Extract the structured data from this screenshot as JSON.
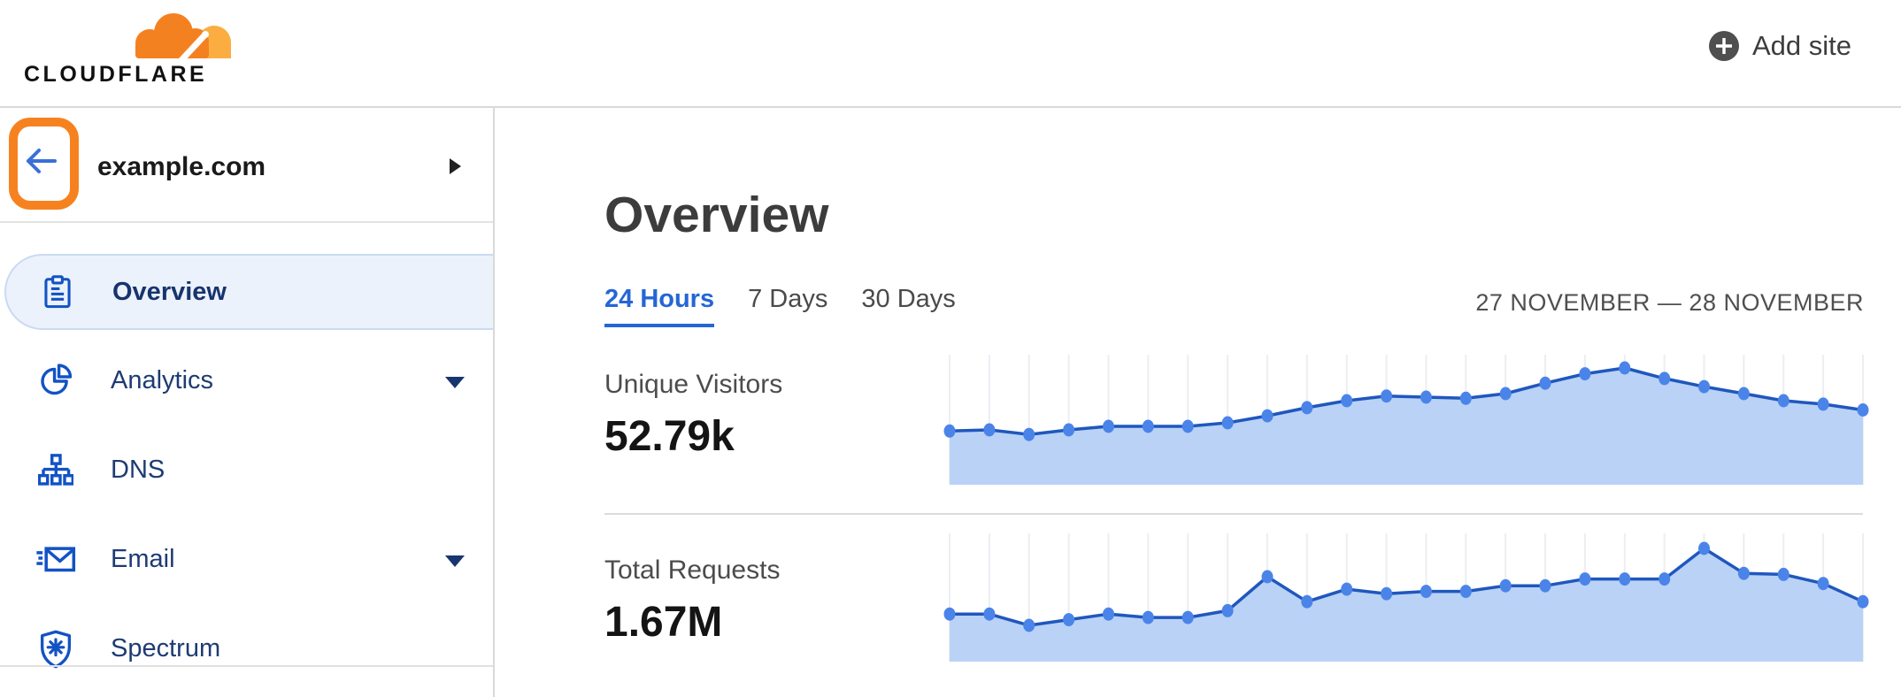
{
  "header": {
    "logo_text": "CLOUDFLARE",
    "add_site_label": "Add site"
  },
  "sidebar": {
    "site_name": "example.com",
    "items": [
      {
        "label": "Overview",
        "icon": "clipboard-icon",
        "active": true,
        "has_caret": false
      },
      {
        "label": "Analytics",
        "icon": "pie-chart-icon",
        "active": false,
        "has_caret": true
      },
      {
        "label": "DNS",
        "icon": "sitemap-icon",
        "active": false,
        "has_caret": false
      },
      {
        "label": "Email",
        "icon": "email-forward-icon",
        "active": false,
        "has_caret": true
      },
      {
        "label": "Spectrum",
        "icon": "shield-asterisk-icon",
        "active": false,
        "has_caret": false
      }
    ]
  },
  "main": {
    "title": "Overview",
    "tabs": [
      {
        "label": "24 Hours",
        "active": true
      },
      {
        "label": "7 Days",
        "active": false
      },
      {
        "label": "30 Days",
        "active": false
      }
    ],
    "date_range": "27 NOVEMBER — 28 NOVEMBER",
    "metrics": [
      {
        "label": "Unique Visitors",
        "value": "52.79k"
      },
      {
        "label": "Total Requests",
        "value": "1.67M"
      }
    ]
  },
  "colors": {
    "brand_orange": "#f6821f",
    "brand_orange_light": "#fbad41",
    "accent_blue": "#2566d6",
    "chart_line": "#1f57bd",
    "chart_dot": "#4b84e9",
    "chart_fill": "#b9d2f6",
    "chart_grid": "#edeef2"
  },
  "chart_data": [
    {
      "type": "area",
      "title": "Unique Visitors",
      "total": "52.79k",
      "x_range": "24 hourly points, 27 November — 28 November",
      "y_axis": "unlabeled (relative height, % of chart max)",
      "grid": "vertical gridlines at each point",
      "legend": "none",
      "points_pct": [
        46,
        47,
        43,
        47,
        50,
        50,
        50,
        53,
        59,
        66,
        72,
        76,
        75,
        74,
        78,
        87,
        95,
        100,
        91,
        84,
        78,
        72,
        69,
        64
      ]
    },
    {
      "type": "area",
      "title": "Total Requests",
      "total": "1.67M",
      "x_range": "24 hourly points, 27 November — 28 November",
      "y_axis": "unlabeled (relative height, % of chart max)",
      "grid": "vertical gridlines at each point",
      "legend": "none",
      "points_pct": [
        42,
        42,
        32,
        37,
        42,
        39,
        39,
        45,
        75,
        53,
        64,
        60,
        62,
        62,
        67,
        67,
        73,
        73,
        73,
        100,
        78,
        77,
        69,
        53
      ]
    }
  ]
}
